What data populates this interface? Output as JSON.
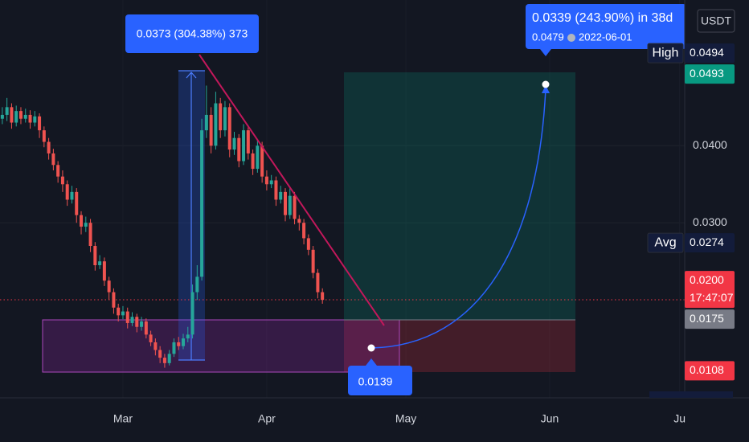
{
  "chart_data": {
    "type": "candlestick",
    "currency": "USDT",
    "x": [
      -26,
      -25,
      -24,
      -23,
      -22,
      -21,
      -20,
      -19,
      -18,
      -17,
      -16,
      -15,
      -14,
      -13,
      -12,
      -11,
      -10,
      -9,
      -8,
      -7,
      -6,
      -5,
      -4,
      -3,
      -2,
      -1,
      0,
      1,
      2,
      3,
      4,
      5,
      6,
      7,
      8,
      9,
      10,
      11,
      12,
      13,
      14,
      15,
      16,
      17,
      18,
      19,
      20,
      21,
      22,
      23,
      24,
      25,
      26,
      27,
      28,
      29,
      30,
      31,
      32,
      33,
      34,
      35,
      36,
      37,
      38,
      39,
      40,
      41,
      42,
      43
    ],
    "open": [
      0.0435,
      0.044,
      0.045,
      0.043,
      0.0445,
      0.0435,
      0.044,
      0.043,
      0.0438,
      0.042,
      0.0405,
      0.039,
      0.0375,
      0.036,
      0.035,
      0.033,
      0.034,
      0.031,
      0.0295,
      0.03,
      0.027,
      0.0245,
      0.025,
      0.0225,
      0.021,
      0.019,
      0.018,
      0.0185,
      0.017,
      0.0178,
      0.0165,
      0.0172,
      0.0155,
      0.0145,
      0.0135,
      0.0125,
      0.0118,
      0.013,
      0.0145,
      0.014,
      0.015,
      0.0155,
      0.021,
      0.023,
      0.042,
      0.044,
      0.04,
      0.0455,
      0.042,
      0.045,
      0.0395,
      0.041,
      0.038,
      0.042,
      0.039,
      0.037,
      0.04,
      0.036,
      0.035,
      0.0355,
      0.033,
      0.034,
      0.031,
      0.0335,
      0.0305,
      0.03,
      0.028,
      0.0265,
      0.0235,
      0.021
    ],
    "high": [
      0.045,
      0.0462,
      0.0455,
      0.0452,
      0.045,
      0.0448,
      0.0446,
      0.0445,
      0.0442,
      0.0425,
      0.041,
      0.0396,
      0.038,
      0.0368,
      0.0355,
      0.0348,
      0.0345,
      0.0315,
      0.0308,
      0.0305,
      0.0275,
      0.0258,
      0.0255,
      0.023,
      0.0215,
      0.0195,
      0.0192,
      0.019,
      0.0184,
      0.0182,
      0.0178,
      0.0176,
      0.016,
      0.015,
      0.014,
      0.013,
      0.0135,
      0.015,
      0.0152,
      0.0156,
      0.0165,
      0.022,
      0.0245,
      0.0435,
      0.0478,
      0.045,
      0.047,
      0.0462,
      0.0458,
      0.0455,
      0.0418,
      0.0415,
      0.0428,
      0.0425,
      0.0395,
      0.0408,
      0.0405,
      0.0368,
      0.0362,
      0.036,
      0.0348,
      0.0345,
      0.0345,
      0.034,
      0.031,
      0.0305,
      0.0285,
      0.027,
      0.024,
      0.0215
    ],
    "low": [
      0.0428,
      0.0432,
      0.0422,
      0.0425,
      0.0428,
      0.043,
      0.0422,
      0.0425,
      0.041,
      0.0398,
      0.0382,
      0.0368,
      0.0352,
      0.034,
      0.0322,
      0.0325,
      0.03,
      0.0285,
      0.0288,
      0.0262,
      0.0238,
      0.024,
      0.0218,
      0.02,
      0.0182,
      0.0172,
      0.0175,
      0.0163,
      0.0166,
      0.0158,
      0.016,
      0.015,
      0.014,
      0.0128,
      0.0118,
      0.0112,
      0.0115,
      0.0126,
      0.0135,
      0.0136,
      0.0145,
      0.015,
      0.02,
      0.0225,
      0.041,
      0.039,
      0.0395,
      0.041,
      0.0412,
      0.0385,
      0.0388,
      0.0372,
      0.0375,
      0.0382,
      0.0362,
      0.0365,
      0.0352,
      0.0342,
      0.0345,
      0.0322,
      0.0325,
      0.0302,
      0.0305,
      0.0298,
      0.029,
      0.0272,
      0.0258,
      0.0228,
      0.0202,
      0.0195
    ],
    "close": [
      0.044,
      0.045,
      0.043,
      0.0445,
      0.0435,
      0.044,
      0.043,
      0.0438,
      0.042,
      0.0405,
      0.039,
      0.0375,
      0.036,
      0.035,
      0.033,
      0.034,
      0.031,
      0.0295,
      0.03,
      0.027,
      0.0245,
      0.025,
      0.0225,
      0.021,
      0.019,
      0.018,
      0.0185,
      0.017,
      0.0178,
      0.0165,
      0.0172,
      0.0155,
      0.0145,
      0.0135,
      0.0125,
      0.0118,
      0.013,
      0.0145,
      0.014,
      0.015,
      0.0155,
      0.021,
      0.023,
      0.042,
      0.044,
      0.04,
      0.0455,
      0.042,
      0.045,
      0.0395,
      0.041,
      0.038,
      0.042,
      0.039,
      0.037,
      0.04,
      0.036,
      0.035,
      0.0355,
      0.033,
      0.034,
      0.031,
      0.0335,
      0.0305,
      0.03,
      0.028,
      0.0265,
      0.0235,
      0.021,
      0.02
    ],
    "up_color": "#26a69a",
    "down_color": "#ef5350",
    "xlim": [
      -26.5,
      121.1
    ],
    "xticks": [
      {
        "value": 0,
        "label": "Mar"
      },
      {
        "value": 31,
        "label": "Apr"
      },
      {
        "value": 61,
        "label": "May"
      },
      {
        "value": 92,
        "label": "Jun"
      },
      {
        "value": 120,
        "label": "Ju"
      }
    ],
    "ylim": [
      0.0073,
      0.0589
    ],
    "yticks": [
      {
        "value": 0.03,
        "label": "0.0300"
      },
      {
        "value": 0.04,
        "label": "0.0400"
      }
    ],
    "grid": true,
    "price_labels": [
      {
        "value": 0.0494,
        "label": "0.0494",
        "tag": "High",
        "color": "#131c3b"
      },
      {
        "value": 0.0493,
        "label": "0.0493",
        "color": "#089981"
      },
      {
        "value": 0.0274,
        "label": "0.0274",
        "tag": "Avg",
        "color": "#131c3b"
      },
      {
        "value": 0.02,
        "label": "0.0200",
        "sub": "17:47:07",
        "color": "#f23645"
      },
      {
        "value": 0.0175,
        "label": "0.0175",
        "color": "#787b86"
      },
      {
        "value": 0.0108,
        "label": "0.0108",
        "color": "#f23645"
      }
    ],
    "annotations": {
      "measure": "0.0373 (304.38%) 373",
      "forecast": "0.0339 (243.90%) in 38d",
      "forecast_price": "0.0479",
      "forecast_date": "2022-06-01",
      "entry": "0.0139"
    }
  }
}
